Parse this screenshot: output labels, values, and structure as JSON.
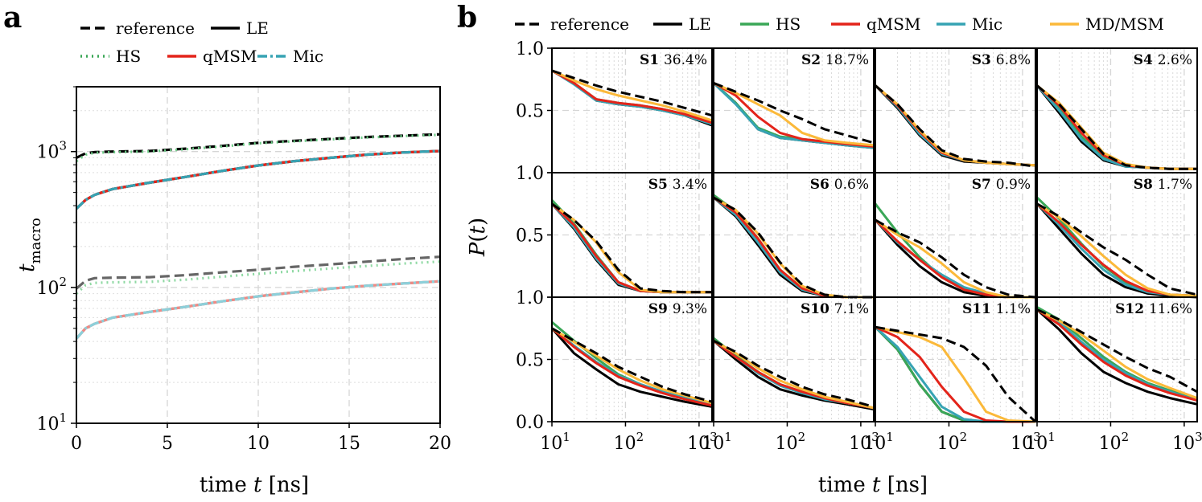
{
  "panel_a": {
    "letter": "a",
    "legend": [
      {
        "label": "reference",
        "color": "#000000",
        "dash": "dash"
      },
      {
        "label": "LE",
        "color": "#000000",
        "dash": "solid"
      },
      {
        "label": "HS",
        "color": "#3aa757",
        "dash": "dot"
      },
      {
        "label": "qMSM",
        "color": "#e3241a",
        "dash": "solid"
      },
      {
        "label": "Mic",
        "color": "#36a3b3",
        "dash": "dashdot"
      }
    ]
  },
  "panel_b": {
    "letter": "b",
    "legend": [
      {
        "label": "reference",
        "color": "#000000",
        "dash": "dash"
      },
      {
        "label": "LE",
        "color": "#000000",
        "dash": "solid"
      },
      {
        "label": "HS",
        "color": "#3aa757",
        "dash": "solid"
      },
      {
        "label": "qMSM",
        "color": "#e3241a",
        "dash": "solid"
      },
      {
        "label": "Mic",
        "color": "#36a3b3",
        "dash": "solid"
      },
      {
        "label": "MD/MSM",
        "color": "#fbb93a",
        "dash": "solid"
      }
    ]
  },
  "chart_data": [
    {
      "type": "line",
      "panel": "a",
      "xlabel": "time t [ns]",
      "ylabel": "t_macro",
      "xlim": [
        0,
        20
      ],
      "ylim": [
        10,
        3000
      ],
      "yscale": "log",
      "x_ticks": [
        "0",
        "5",
        "10",
        "15",
        "20"
      ],
      "y_ticks": [
        "10^1",
        "10^2",
        "10^3"
      ],
      "grid": true,
      "x": [
        0,
        0.5,
        1,
        2,
        4,
        6,
        8,
        10,
        12,
        14,
        16,
        18,
        20
      ],
      "series": [
        {
          "name": "reference",
          "group": "slowest",
          "color": "#000000",
          "dash": "dash",
          "values": [
            900,
            970,
            990,
            1000,
            1010,
            1050,
            1100,
            1160,
            1200,
            1240,
            1280,
            1310,
            1340
          ]
        },
        {
          "name": "HS",
          "group": "slowest",
          "color": "#6ccc86",
          "dash": "dot",
          "values": [
            850,
            950,
            980,
            990,
            1000,
            1040,
            1090,
            1150,
            1190,
            1230,
            1270,
            1300,
            1330
          ]
        },
        {
          "name": "LE",
          "group": "slowest",
          "color": "#000000",
          "dash": "solid",
          "values": [
            380,
            440,
            480,
            530,
            590,
            650,
            720,
            790,
            850,
            900,
            950,
            985,
            1010
          ]
        },
        {
          "name": "qMSM",
          "group": "slowest",
          "color": "#e3241a",
          "dash": "solid",
          "values": [
            380,
            440,
            480,
            530,
            590,
            650,
            720,
            790,
            850,
            900,
            950,
            985,
            1010
          ]
        },
        {
          "name": "Mic",
          "group": "slowest",
          "color": "#36a3b3",
          "dash": "dashdot",
          "values": [
            380,
            440,
            480,
            530,
            590,
            650,
            720,
            790,
            850,
            900,
            950,
            985,
            1010
          ]
        },
        {
          "name": "reference",
          "group": "second",
          "color": "#666666",
          "dash": "dash",
          "values": [
            98,
            112,
            117,
            118,
            119,
            123,
            129,
            135,
            142,
            148,
            155,
            162,
            168
          ]
        },
        {
          "name": "HS",
          "group": "second",
          "color": "#8fd9a3",
          "dash": "dot",
          "values": [
            90,
            104,
            108,
            109,
            110,
            114,
            120,
            126,
            132,
            138,
            144,
            150,
            155
          ]
        },
        {
          "name": "LE",
          "group": "second",
          "color": "#9a9a9a",
          "dash": "solid",
          "values": [
            42,
            50,
            54,
            60,
            66,
            72,
            79,
            86,
            92,
            98,
            103,
            107,
            111
          ]
        },
        {
          "name": "qMSM",
          "group": "second",
          "color": "#f08a84",
          "dash": "solid",
          "values": [
            42,
            50,
            54,
            60,
            66,
            72,
            79,
            86,
            92,
            98,
            103,
            107,
            111
          ]
        },
        {
          "name": "Mic",
          "group": "second",
          "color": "#8dd0da",
          "dash": "dashdot",
          "values": [
            42,
            50,
            54,
            60,
            66,
            72,
            79,
            86,
            92,
            98,
            103,
            107,
            111
          ]
        }
      ]
    },
    {
      "type": "line",
      "panel": "b",
      "xlabel": "time t [ns]",
      "ylabel": "P(t)",
      "xscale": "log",
      "xlim": [
        10,
        1500
      ],
      "ylim": [
        0,
        1
      ],
      "x_ticks": [
        "10^1",
        "10^2",
        "10^3"
      ],
      "y_ticks": [
        "0.0",
        "0.5",
        "1.0"
      ],
      "x": [
        10,
        20,
        40,
        80,
        160,
        320,
        640,
        1500
      ],
      "subplots": [
        {
          "label": "S1",
          "pct": "36.4%",
          "reference": [
            0.82,
            0.76,
            0.7,
            0.65,
            0.61,
            0.57,
            0.52,
            0.46
          ],
          "LE": [
            0.82,
            0.72,
            0.58,
            0.55,
            0.53,
            0.5,
            0.46,
            0.38
          ],
          "HS": [
            0.82,
            0.72,
            0.59,
            0.56,
            0.54,
            0.51,
            0.47,
            0.4
          ],
          "qMSM": [
            0.82,
            0.72,
            0.59,
            0.56,
            0.54,
            0.51,
            0.47,
            0.4
          ],
          "Mic": [
            0.82,
            0.71,
            0.58,
            0.55,
            0.53,
            0.5,
            0.46,
            0.39
          ],
          "MD/MSM": [
            0.82,
            0.74,
            0.67,
            0.62,
            0.58,
            0.54,
            0.49,
            0.42
          ]
        },
        {
          "label": "S2",
          "pct": "18.7%",
          "reference": [
            0.72,
            0.65,
            0.58,
            0.5,
            0.43,
            0.35,
            0.3,
            0.24
          ],
          "LE": [
            0.72,
            0.56,
            0.35,
            0.28,
            0.26,
            0.24,
            0.22,
            0.2
          ],
          "HS": [
            0.72,
            0.56,
            0.36,
            0.29,
            0.27,
            0.25,
            0.23,
            0.21
          ],
          "qMSM": [
            0.72,
            0.62,
            0.45,
            0.32,
            0.27,
            0.25,
            0.23,
            0.21
          ],
          "Mic": [
            0.72,
            0.55,
            0.35,
            0.28,
            0.26,
            0.24,
            0.22,
            0.2
          ],
          "MD/MSM": [
            0.72,
            0.64,
            0.55,
            0.46,
            0.32,
            0.26,
            0.24,
            0.22
          ]
        },
        {
          "label": "S3",
          "pct": "6.8%",
          "reference": [
            0.7,
            0.55,
            0.35,
            0.18,
            0.11,
            0.09,
            0.08,
            0.05
          ],
          "LE": [
            0.7,
            0.52,
            0.3,
            0.14,
            0.09,
            0.08,
            0.07,
            0.06
          ],
          "HS": [
            0.7,
            0.54,
            0.33,
            0.16,
            0.1,
            0.08,
            0.07,
            0.06
          ],
          "qMSM": [
            0.7,
            0.54,
            0.33,
            0.16,
            0.1,
            0.08,
            0.07,
            0.06
          ],
          "Mic": [
            0.7,
            0.53,
            0.31,
            0.15,
            0.1,
            0.08,
            0.07,
            0.06
          ],
          "MD/MSM": [
            0.7,
            0.55,
            0.34,
            0.17,
            0.1,
            0.08,
            0.07,
            0.06
          ]
        },
        {
          "label": "S4",
          "pct": "2.6%",
          "reference": [
            0.7,
            0.55,
            0.35,
            0.15,
            0.06,
            0.04,
            0.03,
            0.03
          ],
          "LE": [
            0.7,
            0.48,
            0.25,
            0.1,
            0.05,
            0.04,
            0.03,
            0.03
          ],
          "HS": [
            0.7,
            0.52,
            0.29,
            0.12,
            0.06,
            0.04,
            0.03,
            0.03
          ],
          "qMSM": [
            0.7,
            0.54,
            0.32,
            0.14,
            0.06,
            0.04,
            0.03,
            0.03
          ],
          "Mic": [
            0.7,
            0.5,
            0.27,
            0.11,
            0.05,
            0.04,
            0.03,
            0.03
          ],
          "MD/MSM": [
            0.7,
            0.56,
            0.36,
            0.16,
            0.07,
            0.04,
            0.03,
            0.03
          ]
        },
        {
          "label": "S5",
          "pct": "3.4%",
          "reference": [
            0.75,
            0.62,
            0.45,
            0.22,
            0.07,
            0.05,
            0.04,
            0.04
          ],
          "LE": [
            0.75,
            0.55,
            0.3,
            0.1,
            0.05,
            0.04,
            0.04,
            0.04
          ],
          "HS": [
            0.78,
            0.59,
            0.34,
            0.12,
            0.05,
            0.04,
            0.04,
            0.04
          ],
          "qMSM": [
            0.75,
            0.58,
            0.33,
            0.12,
            0.05,
            0.04,
            0.04,
            0.04
          ],
          "Mic": [
            0.75,
            0.56,
            0.31,
            0.11,
            0.05,
            0.04,
            0.04,
            0.04
          ],
          "MD/MSM": [
            0.75,
            0.62,
            0.44,
            0.2,
            0.06,
            0.04,
            0.04,
            0.04
          ]
        },
        {
          "label": "S6",
          "pct": "0.6%",
          "reference": [
            0.8,
            0.7,
            0.52,
            0.28,
            0.1,
            0.02,
            0.0,
            0.0
          ],
          "LE": [
            0.8,
            0.65,
            0.42,
            0.18,
            0.05,
            0.01,
            0.0,
            0.0
          ],
          "HS": [
            0.82,
            0.69,
            0.47,
            0.22,
            0.07,
            0.01,
            0.0,
            0.0
          ],
          "qMSM": [
            0.8,
            0.68,
            0.47,
            0.22,
            0.07,
            0.01,
            0.0,
            0.0
          ],
          "Mic": [
            0.8,
            0.66,
            0.44,
            0.2,
            0.06,
            0.01,
            0.0,
            0.0
          ],
          "MD/MSM": [
            0.8,
            0.7,
            0.51,
            0.27,
            0.09,
            0.02,
            0.0,
            0.0
          ]
        },
        {
          "label": "S7",
          "pct": "0.9%",
          "reference": [
            0.62,
            0.52,
            0.44,
            0.32,
            0.18,
            0.08,
            0.02,
            0.0
          ],
          "LE": [
            0.62,
            0.42,
            0.25,
            0.12,
            0.04,
            0.01,
            0.0,
            0.0
          ],
          "HS": [
            0.75,
            0.52,
            0.32,
            0.16,
            0.06,
            0.02,
            0.0,
            0.0
          ],
          "qMSM": [
            0.62,
            0.45,
            0.3,
            0.16,
            0.06,
            0.02,
            0.0,
            0.0
          ],
          "Mic": [
            0.62,
            0.44,
            0.3,
            0.18,
            0.08,
            0.03,
            0.0,
            0.0
          ],
          "MD/MSM": [
            0.62,
            0.5,
            0.4,
            0.27,
            0.12,
            0.04,
            0.0,
            0.0
          ]
        },
        {
          "label": "S8",
          "pct": "1.7%",
          "reference": [
            0.75,
            0.65,
            0.52,
            0.4,
            0.3,
            0.18,
            0.07,
            0.02
          ],
          "LE": [
            0.75,
            0.55,
            0.35,
            0.18,
            0.08,
            0.03,
            0.01,
            0.0
          ],
          "HS": [
            0.8,
            0.63,
            0.43,
            0.25,
            0.12,
            0.05,
            0.02,
            0.01
          ],
          "qMSM": [
            0.75,
            0.6,
            0.42,
            0.26,
            0.13,
            0.05,
            0.02,
            0.01
          ],
          "Mic": [
            0.75,
            0.58,
            0.39,
            0.22,
            0.1,
            0.04,
            0.02,
            0.01
          ],
          "MD/MSM": [
            0.75,
            0.64,
            0.49,
            0.33,
            0.18,
            0.07,
            0.02,
            0.01
          ]
        },
        {
          "label": "S9",
          "pct": "9.3%",
          "reference": [
            0.75,
            0.65,
            0.55,
            0.44,
            0.36,
            0.28,
            0.22,
            0.16
          ],
          "LE": [
            0.75,
            0.55,
            0.42,
            0.3,
            0.24,
            0.2,
            0.16,
            0.12
          ],
          "HS": [
            0.8,
            0.65,
            0.51,
            0.38,
            0.3,
            0.24,
            0.19,
            0.14
          ],
          "qMSM": [
            0.75,
            0.6,
            0.47,
            0.36,
            0.29,
            0.23,
            0.18,
            0.13
          ],
          "Mic": [
            0.75,
            0.61,
            0.48,
            0.37,
            0.3,
            0.24,
            0.19,
            0.14
          ],
          "MD/MSM": [
            0.75,
            0.64,
            0.53,
            0.42,
            0.33,
            0.26,
            0.21,
            0.15
          ]
        },
        {
          "label": "S10",
          "pct": "7.1%",
          "reference": [
            0.65,
            0.56,
            0.45,
            0.36,
            0.28,
            0.22,
            0.18,
            0.12
          ],
          "LE": [
            0.65,
            0.5,
            0.36,
            0.26,
            0.21,
            0.17,
            0.14,
            0.1
          ],
          "HS": [
            0.67,
            0.53,
            0.4,
            0.3,
            0.24,
            0.19,
            0.15,
            0.11
          ],
          "qMSM": [
            0.65,
            0.52,
            0.4,
            0.3,
            0.24,
            0.19,
            0.15,
            0.11
          ],
          "Mic": [
            0.65,
            0.52,
            0.39,
            0.29,
            0.23,
            0.18,
            0.15,
            0.11
          ],
          "MD/MSM": [
            0.65,
            0.55,
            0.43,
            0.33,
            0.26,
            0.2,
            0.16,
            0.11
          ]
        },
        {
          "label": "S11",
          "pct": "1.1%",
          "reference": [
            0.76,
            0.73,
            0.7,
            0.67,
            0.6,
            0.45,
            0.2,
            0.0
          ],
          "LE": [
            0.76,
            0.58,
            0.3,
            0.08,
            0.01,
            0.0,
            0.0,
            0.0
          ],
          "HS": [
            0.76,
            0.58,
            0.3,
            0.08,
            0.01,
            0.0,
            0.0,
            0.0
          ],
          "qMSM": [
            0.76,
            0.68,
            0.52,
            0.28,
            0.08,
            0.01,
            0.0,
            0.0
          ],
          "Mic": [
            0.76,
            0.6,
            0.36,
            0.12,
            0.02,
            0.0,
            0.0,
            0.0
          ],
          "MD/MSM": [
            0.76,
            0.72,
            0.68,
            0.6,
            0.35,
            0.08,
            0.01,
            0.0
          ]
        },
        {
          "label": "S12",
          "pct": "11.6%",
          "reference": [
            0.9,
            0.82,
            0.72,
            0.62,
            0.52,
            0.43,
            0.36,
            0.24
          ],
          "LE": [
            0.9,
            0.74,
            0.55,
            0.4,
            0.31,
            0.24,
            0.19,
            0.14
          ],
          "HS": [
            0.92,
            0.82,
            0.67,
            0.52,
            0.4,
            0.31,
            0.25,
            0.18
          ],
          "qMSM": [
            0.9,
            0.78,
            0.62,
            0.48,
            0.37,
            0.29,
            0.23,
            0.17
          ],
          "Mic": [
            0.9,
            0.8,
            0.64,
            0.5,
            0.39,
            0.3,
            0.24,
            0.17
          ],
          "MD/MSM": [
            0.9,
            0.81,
            0.7,
            0.57,
            0.44,
            0.34,
            0.27,
            0.19
          ]
        }
      ]
    }
  ]
}
